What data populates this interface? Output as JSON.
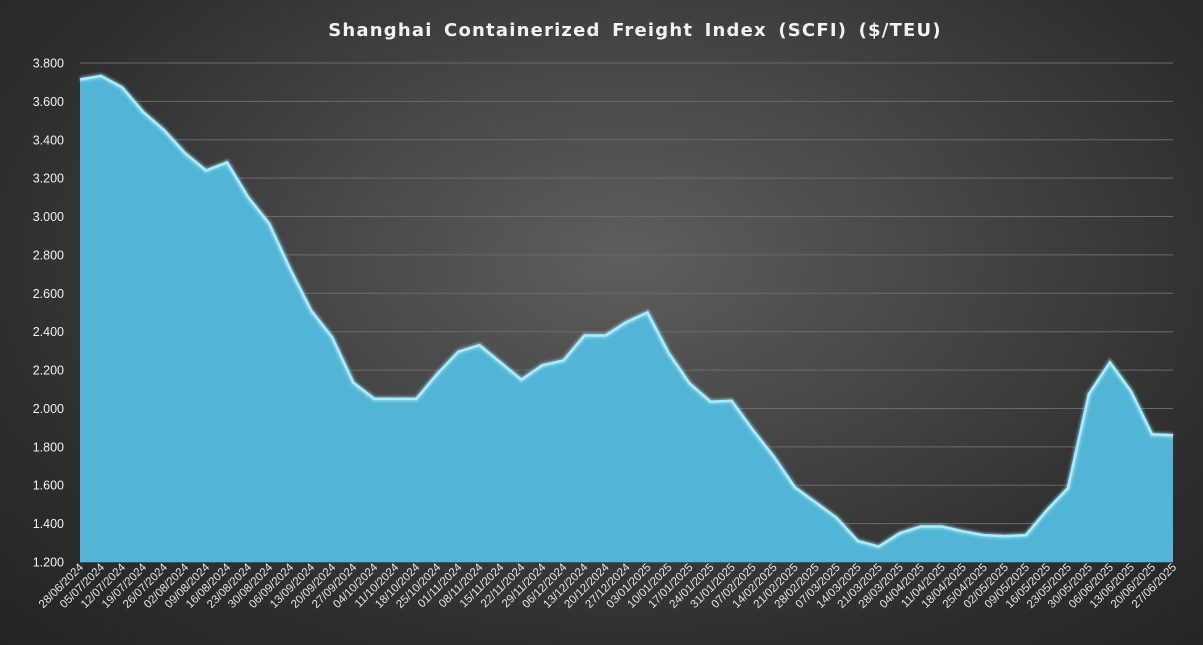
{
  "chart_data": {
    "type": "area",
    "title": "Shanghai Containerized Freight Index  (SCFI) ($/TEU)",
    "xlabel": "",
    "ylabel": "",
    "ylim": [
      1200,
      3800
    ],
    "yticks": [
      1200,
      1400,
      1600,
      1800,
      2000,
      2200,
      2400,
      2600,
      2800,
      3000,
      3200,
      3400,
      3600,
      3800
    ],
    "ytick_labels": [
      "1.200",
      "1.400",
      "1.600",
      "1.800",
      "2.000",
      "2.200",
      "2.400",
      "2.600",
      "2.800",
      "3.000",
      "3.200",
      "3.400",
      "3.600",
      "3.800"
    ],
    "grid": true,
    "legend": false,
    "colors": {
      "area_fill": "#52b5d5",
      "area_line": "#a8ecff"
    },
    "x": [
      "28/06/2024",
      "05/07/2024",
      "12/07/2024",
      "19/07/2024",
      "26/07/2024",
      "02/08/2024",
      "09/08/2024",
      "16/08/2024",
      "23/08/2024",
      "30/08/2024",
      "06/09/2024",
      "13/09/2024",
      "20/09/2024",
      "27/09/2024",
      "04/10/2024",
      "11/10/2024",
      "18/10/2024",
      "25/10/2024",
      "01/11/2024",
      "08/11/2024",
      "15/11/2024",
      "22/11/2024",
      "29/11/2024",
      "06/12/2024",
      "13/12/2024",
      "20/12/2024",
      "27/12/2024",
      "03/01/2025",
      "10/01/2025",
      "17/01/2025",
      "24/01/2025",
      "31/01/2025",
      "07/02/2025",
      "14/02/2025",
      "21/02/2025",
      "28/02/2025",
      "07/03/2025",
      "14/03/2025",
      "21/03/2025",
      "28/03/2025",
      "04/04/2025",
      "11/04/2025",
      "18/04/2025",
      "25/04/2025",
      "02/05/2025",
      "09/05/2025",
      "16/05/2025",
      "23/05/2025",
      "30/05/2025",
      "06/06/2025",
      "13/06/2025",
      "20/06/2025",
      "27/06/2025"
    ],
    "series": [
      {
        "values": [
          3714,
          3733,
          3674,
          3545,
          3450,
          3330,
          3240,
          3282,
          3100,
          2963,
          2726,
          2510,
          2370,
          2135,
          2050,
          2050,
          2050,
          2180,
          2295,
          2330,
          2240,
          2150,
          2225,
          2250,
          2380,
          2380,
          2450,
          2500,
          2290,
          2130,
          2035,
          2040,
          1890,
          1750,
          1590,
          1510,
          1430,
          1310,
          1280,
          1350,
          1385,
          1385,
          1360,
          1340,
          1335,
          1340,
          1470,
          1585,
          2075,
          2240,
          2090,
          1865,
          1860
        ]
      }
    ]
  }
}
